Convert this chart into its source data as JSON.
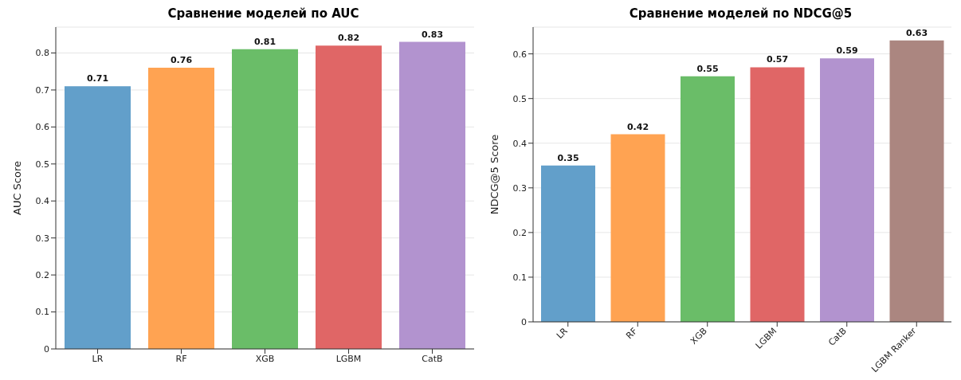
{
  "chart_data": [
    {
      "type": "bar",
      "title": "Сравнение моделей по AUC",
      "ylabel": "AUC Score",
      "categories": [
        "LR",
        "RF",
        "XGB",
        "LGBM",
        "CatB"
      ],
      "values": [
        0.71,
        0.76,
        0.81,
        0.82,
        0.83
      ],
      "colors": [
        "#629fca",
        "#ffa352",
        "#6abd68",
        "#e06666",
        "#b293cf"
      ],
      "ylim": [
        0,
        0.87
      ],
      "yticks": [
        0,
        0.1,
        0.2,
        0.3,
        0.4,
        0.5,
        0.6,
        0.7,
        0.8
      ],
      "grid": "y",
      "data_labels": true
    },
    {
      "type": "bar",
      "title": "Сравнение моделей по NDCG@5",
      "ylabel": "NDCG@5 Score",
      "categories": [
        "LR",
        "RF",
        "XGB",
        "LGBM",
        "CatB",
        "LGBM Ranker"
      ],
      "values": [
        0.35,
        0.42,
        0.55,
        0.57,
        0.59,
        0.63
      ],
      "colors": [
        "#629fca",
        "#ffa352",
        "#6abd68",
        "#e06666",
        "#b293cf",
        "#ab8680"
      ],
      "ylim": [
        0,
        0.66
      ],
      "yticks": [
        0,
        0.1,
        0.2,
        0.3,
        0.4,
        0.5,
        0.6
      ],
      "grid": "y",
      "data_labels": true
    }
  ]
}
